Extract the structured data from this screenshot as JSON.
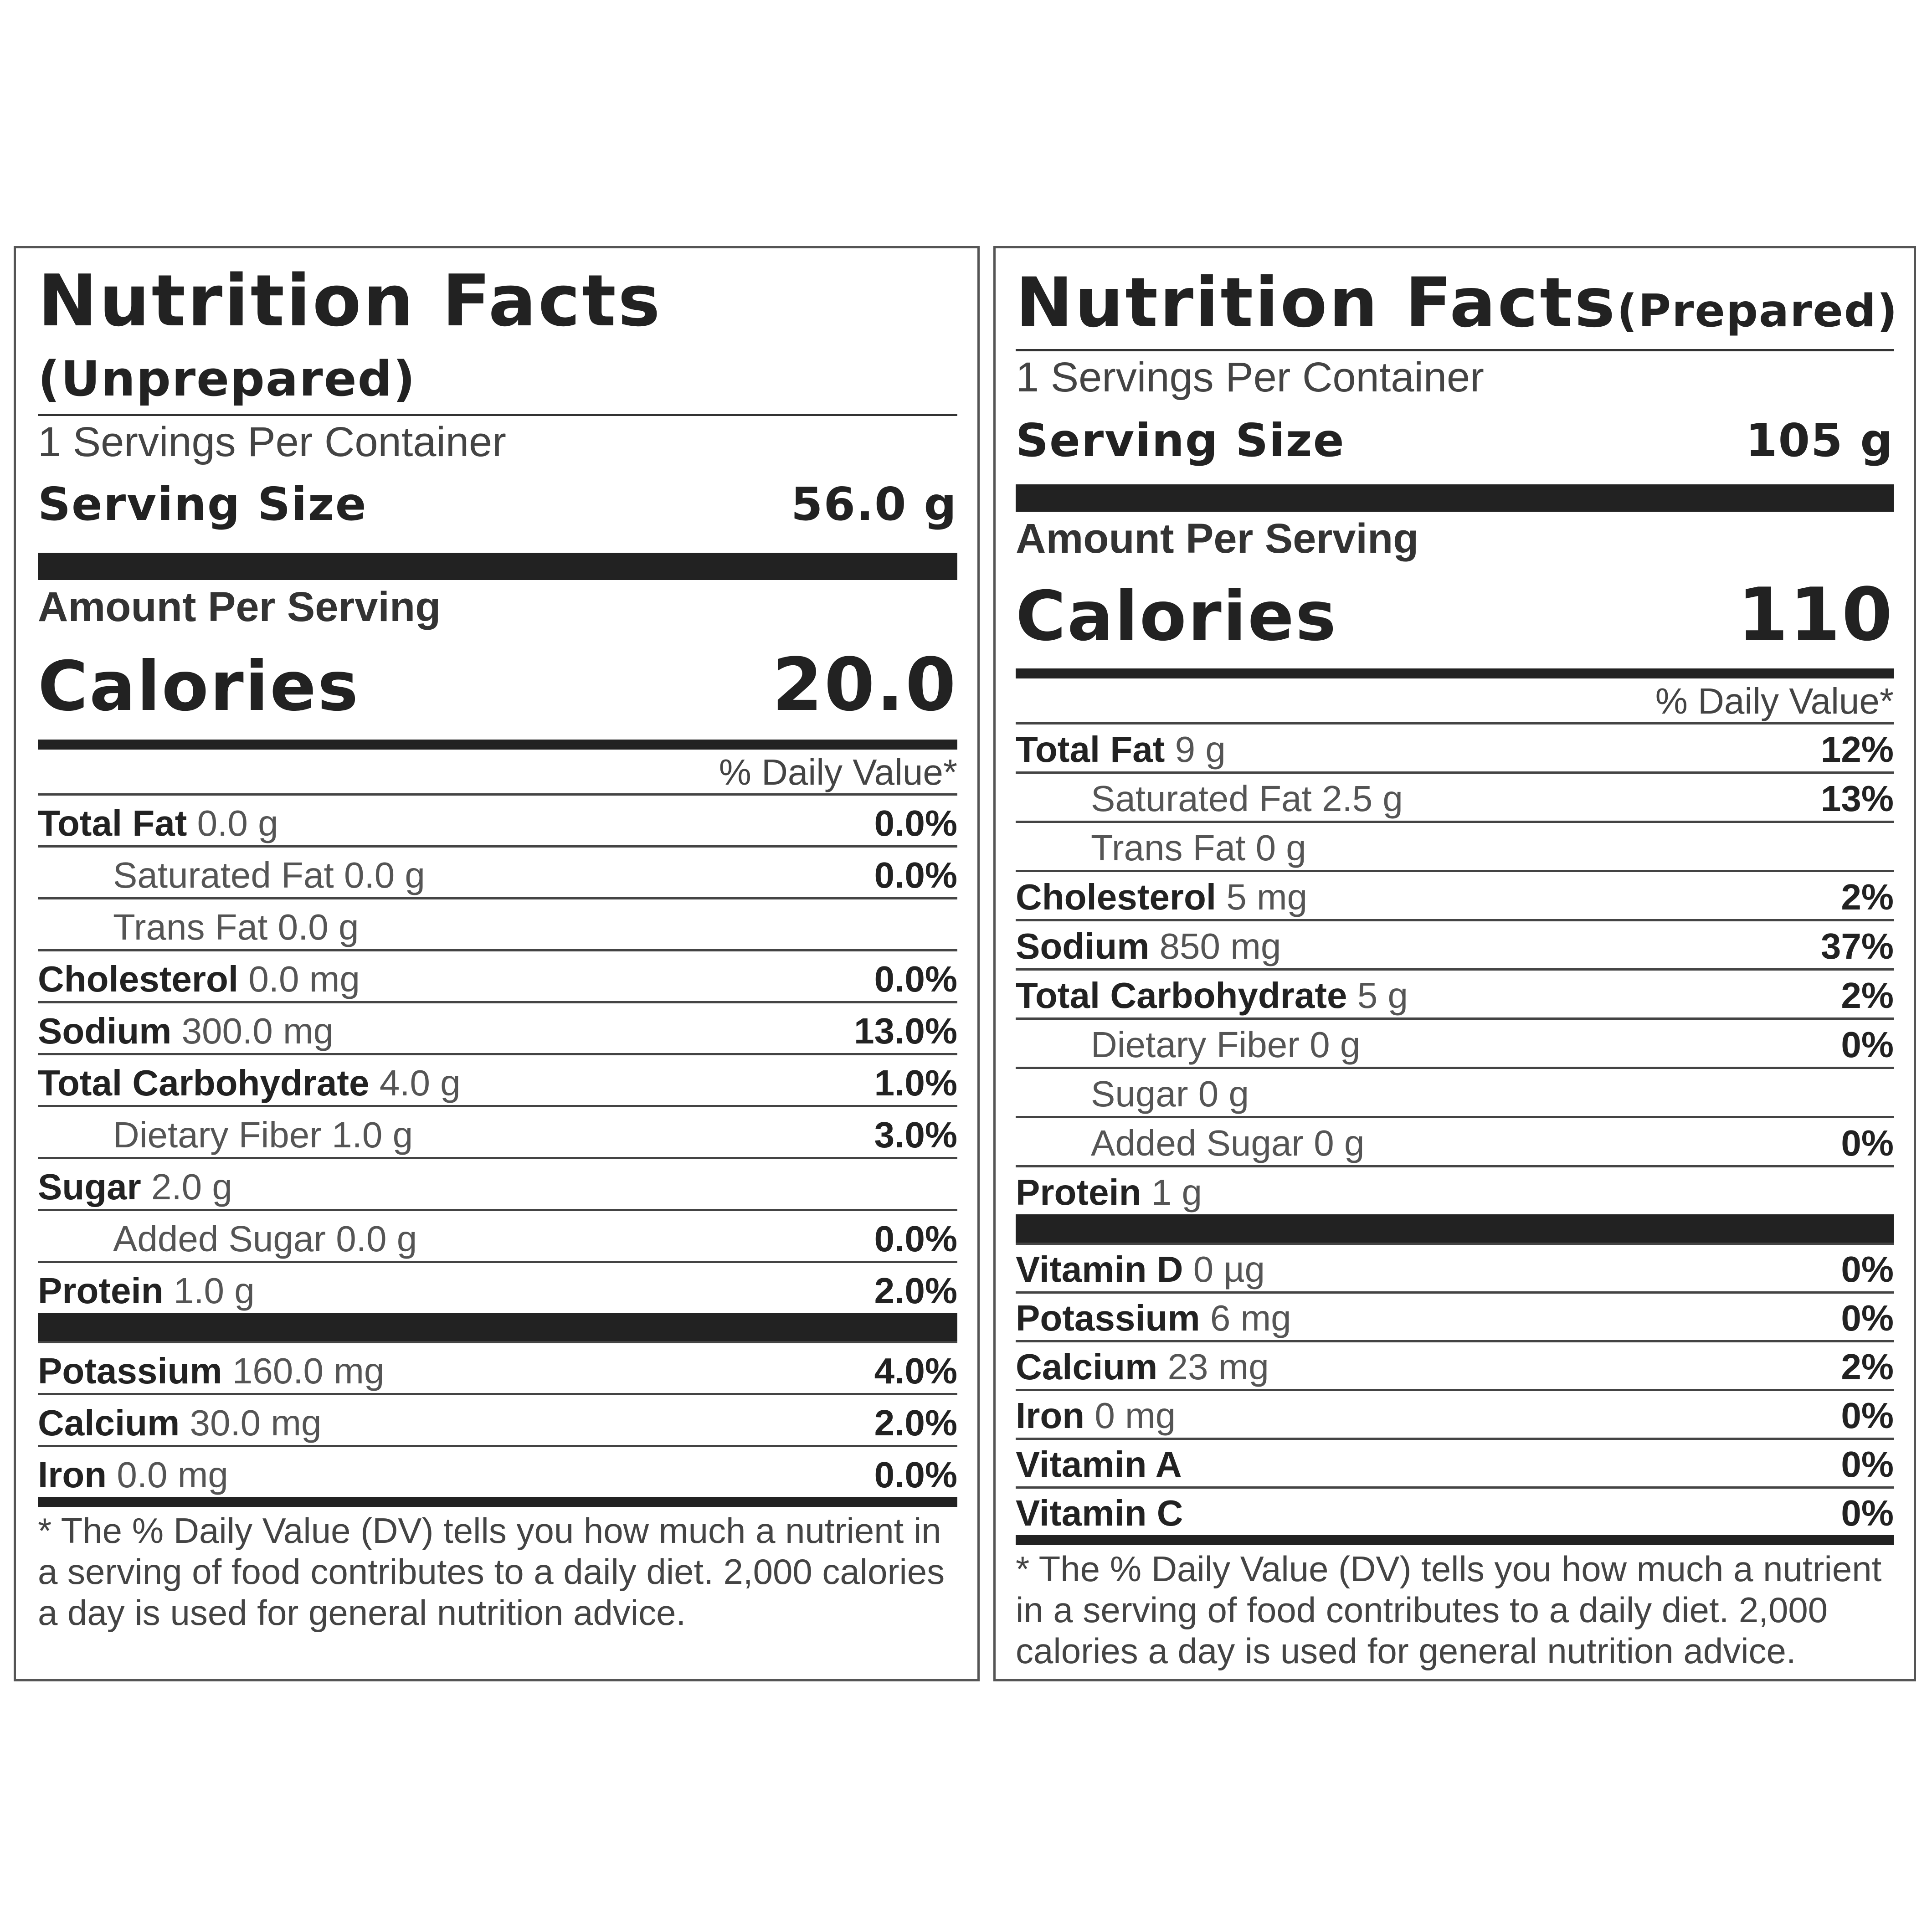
{
  "left": {
    "title": "Nutrition Facts",
    "subtitle": "(Unprepared)",
    "servings": "1 Servings Per Container",
    "serving_size_label": "Serving Size",
    "serving_size_value": "56.0 g",
    "amount_per_serving": "Amount Per Serving",
    "calories_label": "Calories",
    "calories_value": "20.0",
    "dv_header": "% Daily Value*",
    "rows": [
      {
        "name": "Total Fat",
        "amount": "0.0 g",
        "dv": "0.0%"
      },
      {
        "name": "Saturated Fat",
        "amount": "0.0 g",
        "dv": "0.0%"
      },
      {
        "name": "Trans Fat",
        "amount": "0.0 g",
        "dv": ""
      },
      {
        "name": "Cholesterol",
        "amount": "0.0 mg",
        "dv": "0.0%"
      },
      {
        "name": "Sodium",
        "amount": "300.0 mg",
        "dv": "13.0%"
      },
      {
        "name": "Total Carbohydrate",
        "amount": "4.0 g",
        "dv": "1.0%"
      },
      {
        "name": "Dietary Fiber",
        "amount": "1.0 g",
        "dv": "3.0%"
      },
      {
        "name": "Sugar",
        "amount": "2.0 g",
        "dv": ""
      },
      {
        "name": "Added Sugar",
        "amount": "0.0 g",
        "dv": "0.0%"
      },
      {
        "name": "Protein",
        "amount": "1.0 g",
        "dv": "2.0%"
      }
    ],
    "minerals": [
      {
        "name": "Potassium",
        "amount": "160.0 mg",
        "dv": "4.0%"
      },
      {
        "name": "Calcium",
        "amount": "30.0 mg",
        "dv": "2.0%"
      },
      {
        "name": "Iron",
        "amount": "0.0 mg",
        "dv": "0.0%"
      }
    ],
    "footnote": "* The % Daily Value (DV) tells you how much a nutrient in a serving of food contributes to a daily diet. 2,000 calories a day is used for general nutrition advice."
  },
  "right": {
    "title": "Nutrition Facts",
    "subtitle": "(Prepared)",
    "servings": "1 Servings Per Container",
    "serving_size_label": "Serving Size",
    "serving_size_value": "105 g",
    "amount_per_serving": "Amount Per Serving",
    "calories_label": "Calories",
    "calories_value": "110",
    "dv_header": "% Daily Value*",
    "rows": [
      {
        "name": "Total Fat",
        "amount": "9 g",
        "dv": "12%"
      },
      {
        "name": "Saturated Fat",
        "amount": "2.5 g",
        "dv": "13%"
      },
      {
        "name": "Trans Fat",
        "amount": "0 g",
        "dv": ""
      },
      {
        "name": "Cholesterol",
        "amount": "5 mg",
        "dv": "2%"
      },
      {
        "name": "Sodium",
        "amount": "850 mg",
        "dv": "37%"
      },
      {
        "name": "Total Carbohydrate",
        "amount": "5 g",
        "dv": "2%"
      },
      {
        "name": "Dietary Fiber",
        "amount": "0 g",
        "dv": "0%"
      },
      {
        "name": "Sugar",
        "amount": "0 g",
        "dv": ""
      },
      {
        "name": "Added Sugar",
        "amount": "0 g",
        "dv": "0%"
      },
      {
        "name": "Protein",
        "amount": "1 g",
        "dv": ""
      }
    ],
    "minerals": [
      {
        "name": "Vitamin D",
        "amount": "0 µg",
        "dv": "0%"
      },
      {
        "name": "Potassium",
        "amount": "6 mg",
        "dv": "0%"
      },
      {
        "name": "Calcium",
        "amount": "23 mg",
        "dv": "2%"
      },
      {
        "name": "Iron",
        "amount": "0 mg",
        "dv": "0%"
      },
      {
        "name": "Vitamin A",
        "amount": "",
        "dv": "0%"
      },
      {
        "name": "Vitamin C",
        "amount": "",
        "dv": "0%"
      }
    ],
    "footnote": "* The % Daily Value (DV) tells you how much a nutrient in a serving of food contributes to a daily diet. 2,000 calories a day is used for general nutrition advice."
  }
}
